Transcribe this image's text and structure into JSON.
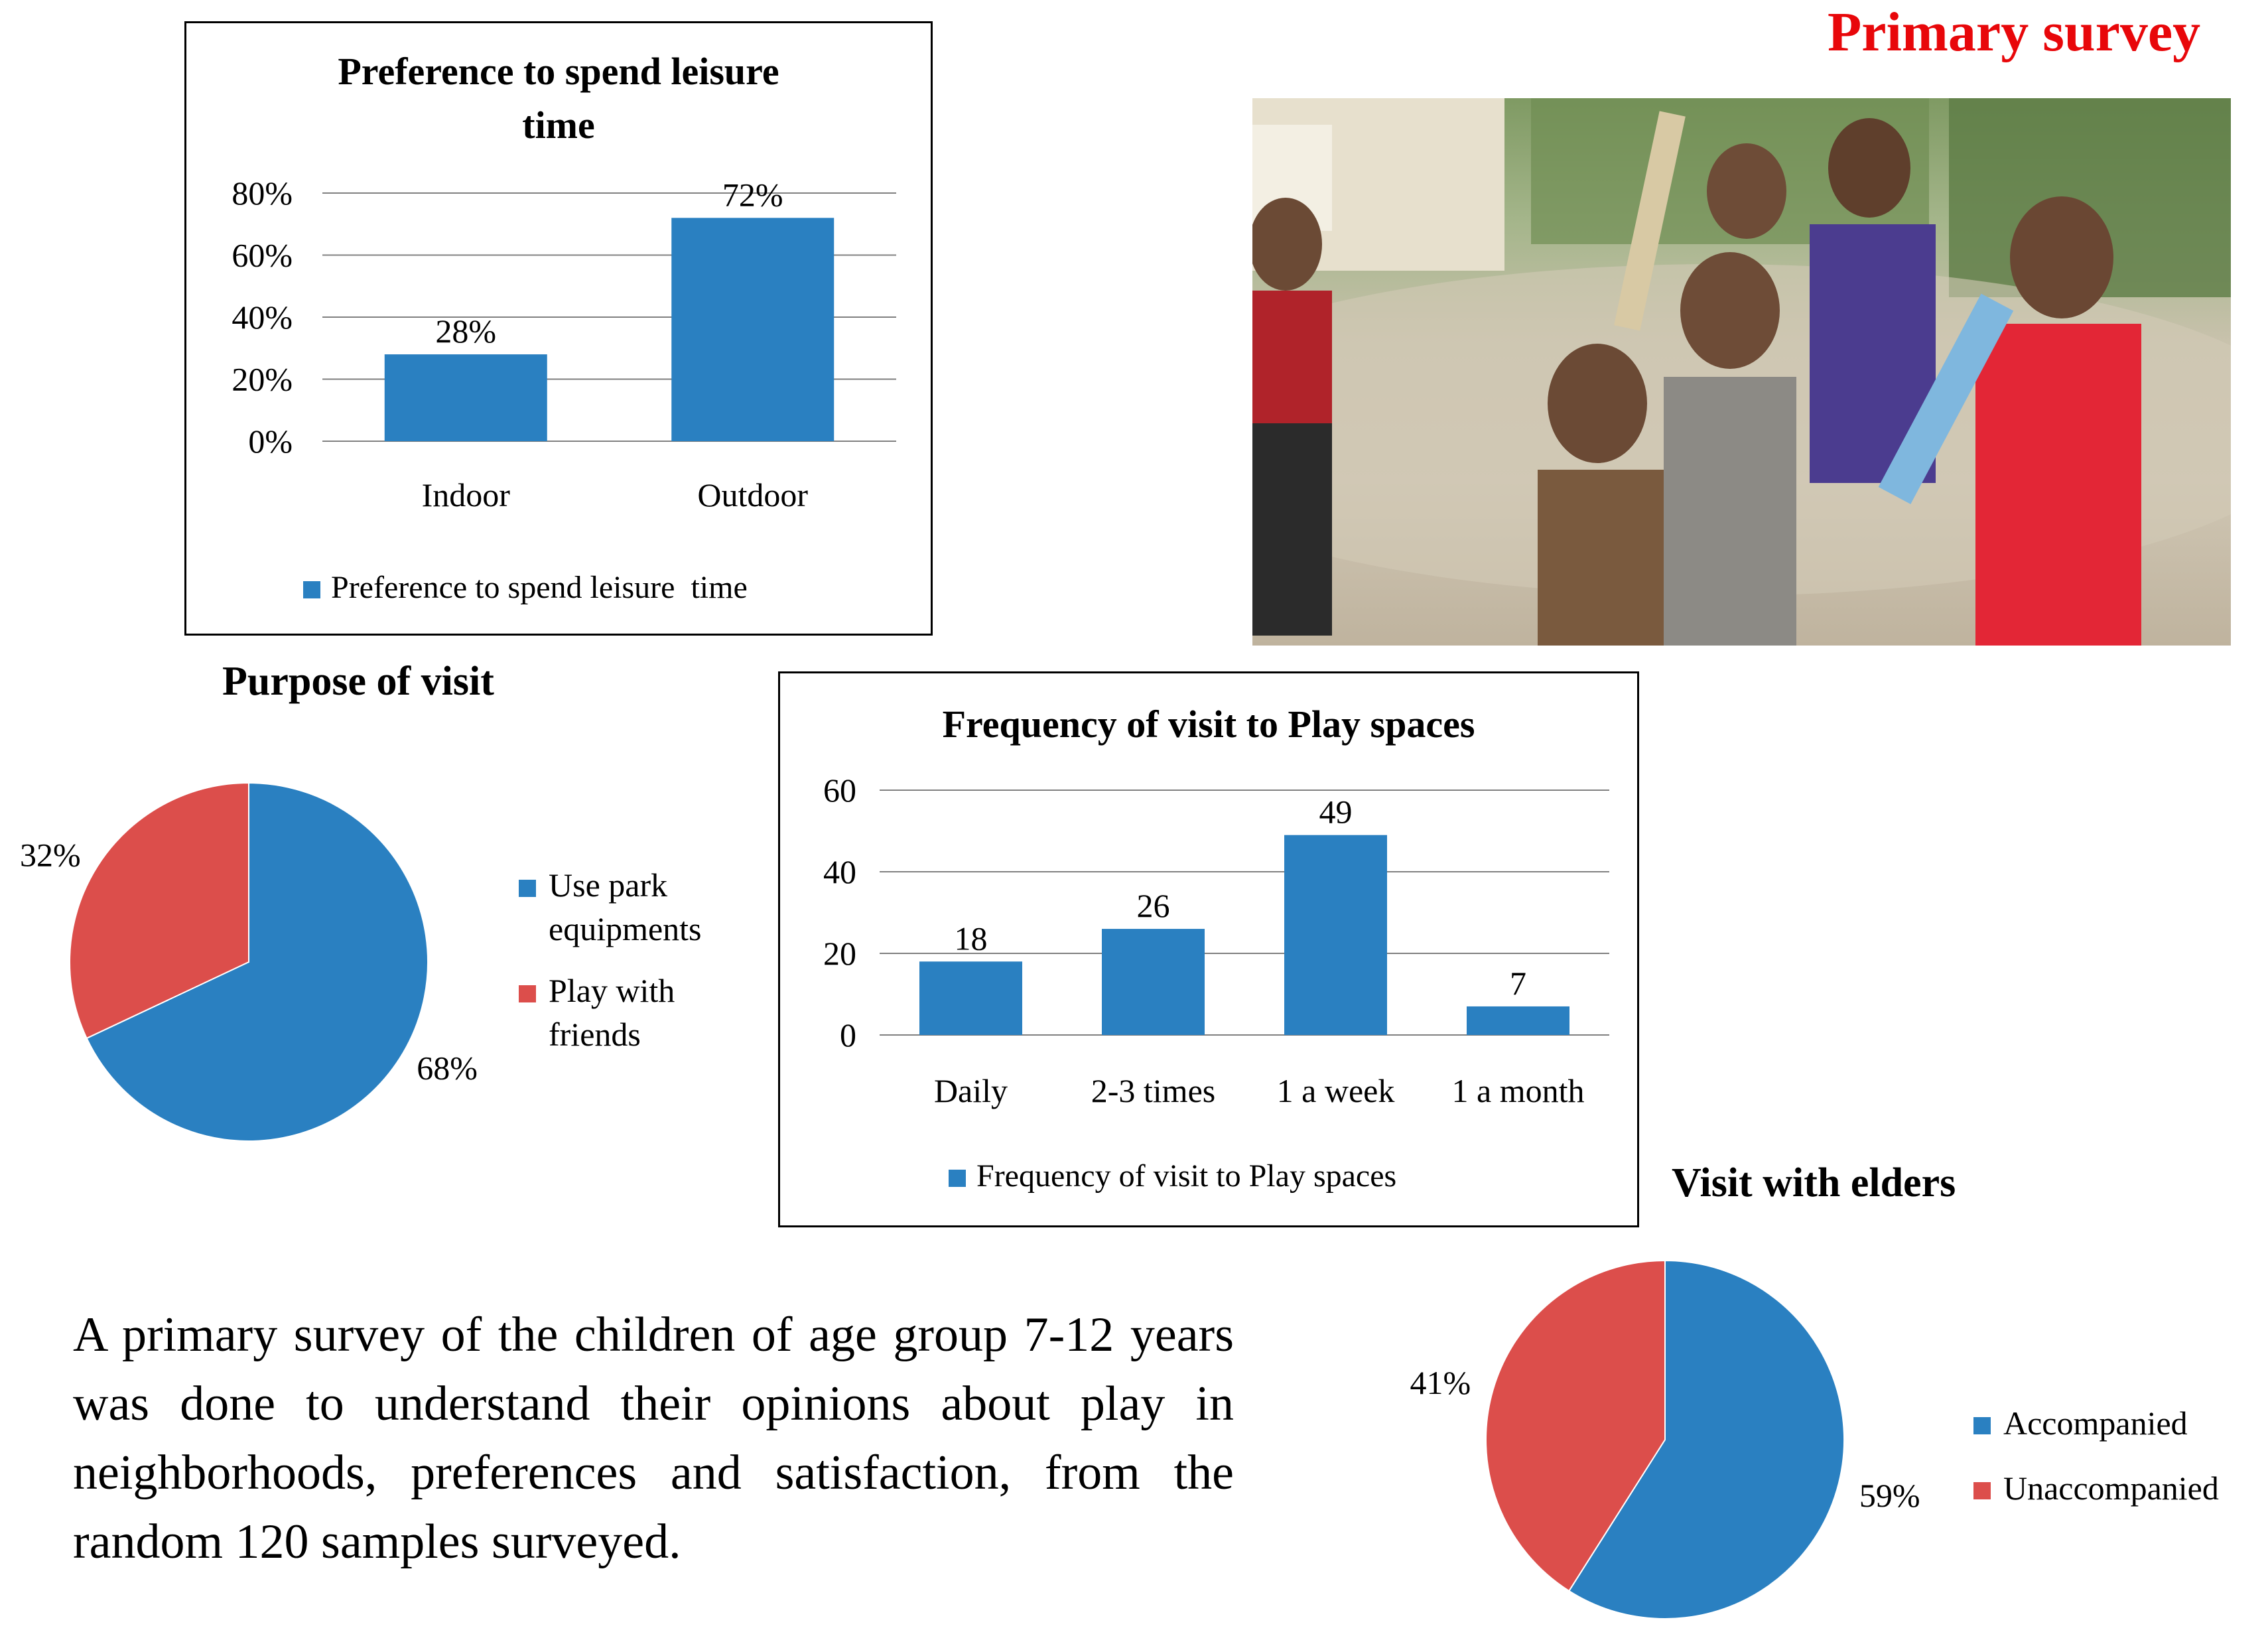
{
  "header": {
    "title": "Primary survey"
  },
  "photo": {
    "description_icon": "children-photo"
  },
  "colors": {
    "blue": "#2a80c1",
    "red": "#dc4e4b",
    "grid": "#808080"
  },
  "leisure_chart": {
    "title_line1": "Preference to spend leisure",
    "title_line2": "time",
    "legend": "Preference to spend leisure  time",
    "ticks": [
      "0%",
      "20%",
      "40%",
      "60%",
      "80%"
    ]
  },
  "purpose_chart": {
    "title": "Purpose of visit",
    "legend": [
      {
        "line1": "Use park",
        "line2": "equipments"
      },
      {
        "line1": "Play with",
        "line2": "friends"
      }
    ]
  },
  "frequency_chart": {
    "title": "Frequency of visit to Play spaces",
    "legend": "Frequency of visit to Play spaces",
    "ticks": [
      "0",
      "20",
      "40",
      "60"
    ]
  },
  "elders_chart": {
    "title": "Visit with elders",
    "legend": [
      "Accompanied",
      "Unaccompanied"
    ]
  },
  "description": "A primary survey of the children of age group 7-12 years was done to understand their opinions about play in neighborhoods, preferences and satisfaction, from the random 120 samples surveyed.",
  "chart_data": [
    {
      "type": "bar",
      "title": "Preference to spend leisure time",
      "categories": [
        "Indoor",
        "Outdoor"
      ],
      "series": [
        {
          "name": "Preference to spend leisure  time",
          "values": [
            28,
            72
          ]
        }
      ],
      "labels": [
        "28%",
        "72%"
      ],
      "ylim": [
        0,
        80
      ],
      "grid": true,
      "legend": "bottom"
    },
    {
      "type": "pie",
      "title": "Purpose of visit",
      "categories": [
        "Use park equipments",
        "Play with friends"
      ],
      "values": [
        68,
        32
      ],
      "labels": [
        "68%",
        "32%"
      ],
      "legend": "right"
    },
    {
      "type": "bar",
      "title": "Frequency of visit to Play spaces",
      "categories": [
        "Daily",
        "2-3 times",
        "1 a week",
        "1 a month"
      ],
      "series": [
        {
          "name": "Frequency of visit to Play spaces",
          "values": [
            18,
            26,
            49,
            7
          ]
        }
      ],
      "labels": [
        "18",
        "26",
        "49",
        "7"
      ],
      "ylim": [
        0,
        60
      ],
      "grid": true,
      "legend": "bottom"
    },
    {
      "type": "pie",
      "title": "Visit with elders",
      "categories": [
        "Accompanied",
        "Unaccompanied"
      ],
      "values": [
        59,
        41
      ],
      "labels": [
        "59%",
        "41%"
      ],
      "legend": "right"
    }
  ]
}
